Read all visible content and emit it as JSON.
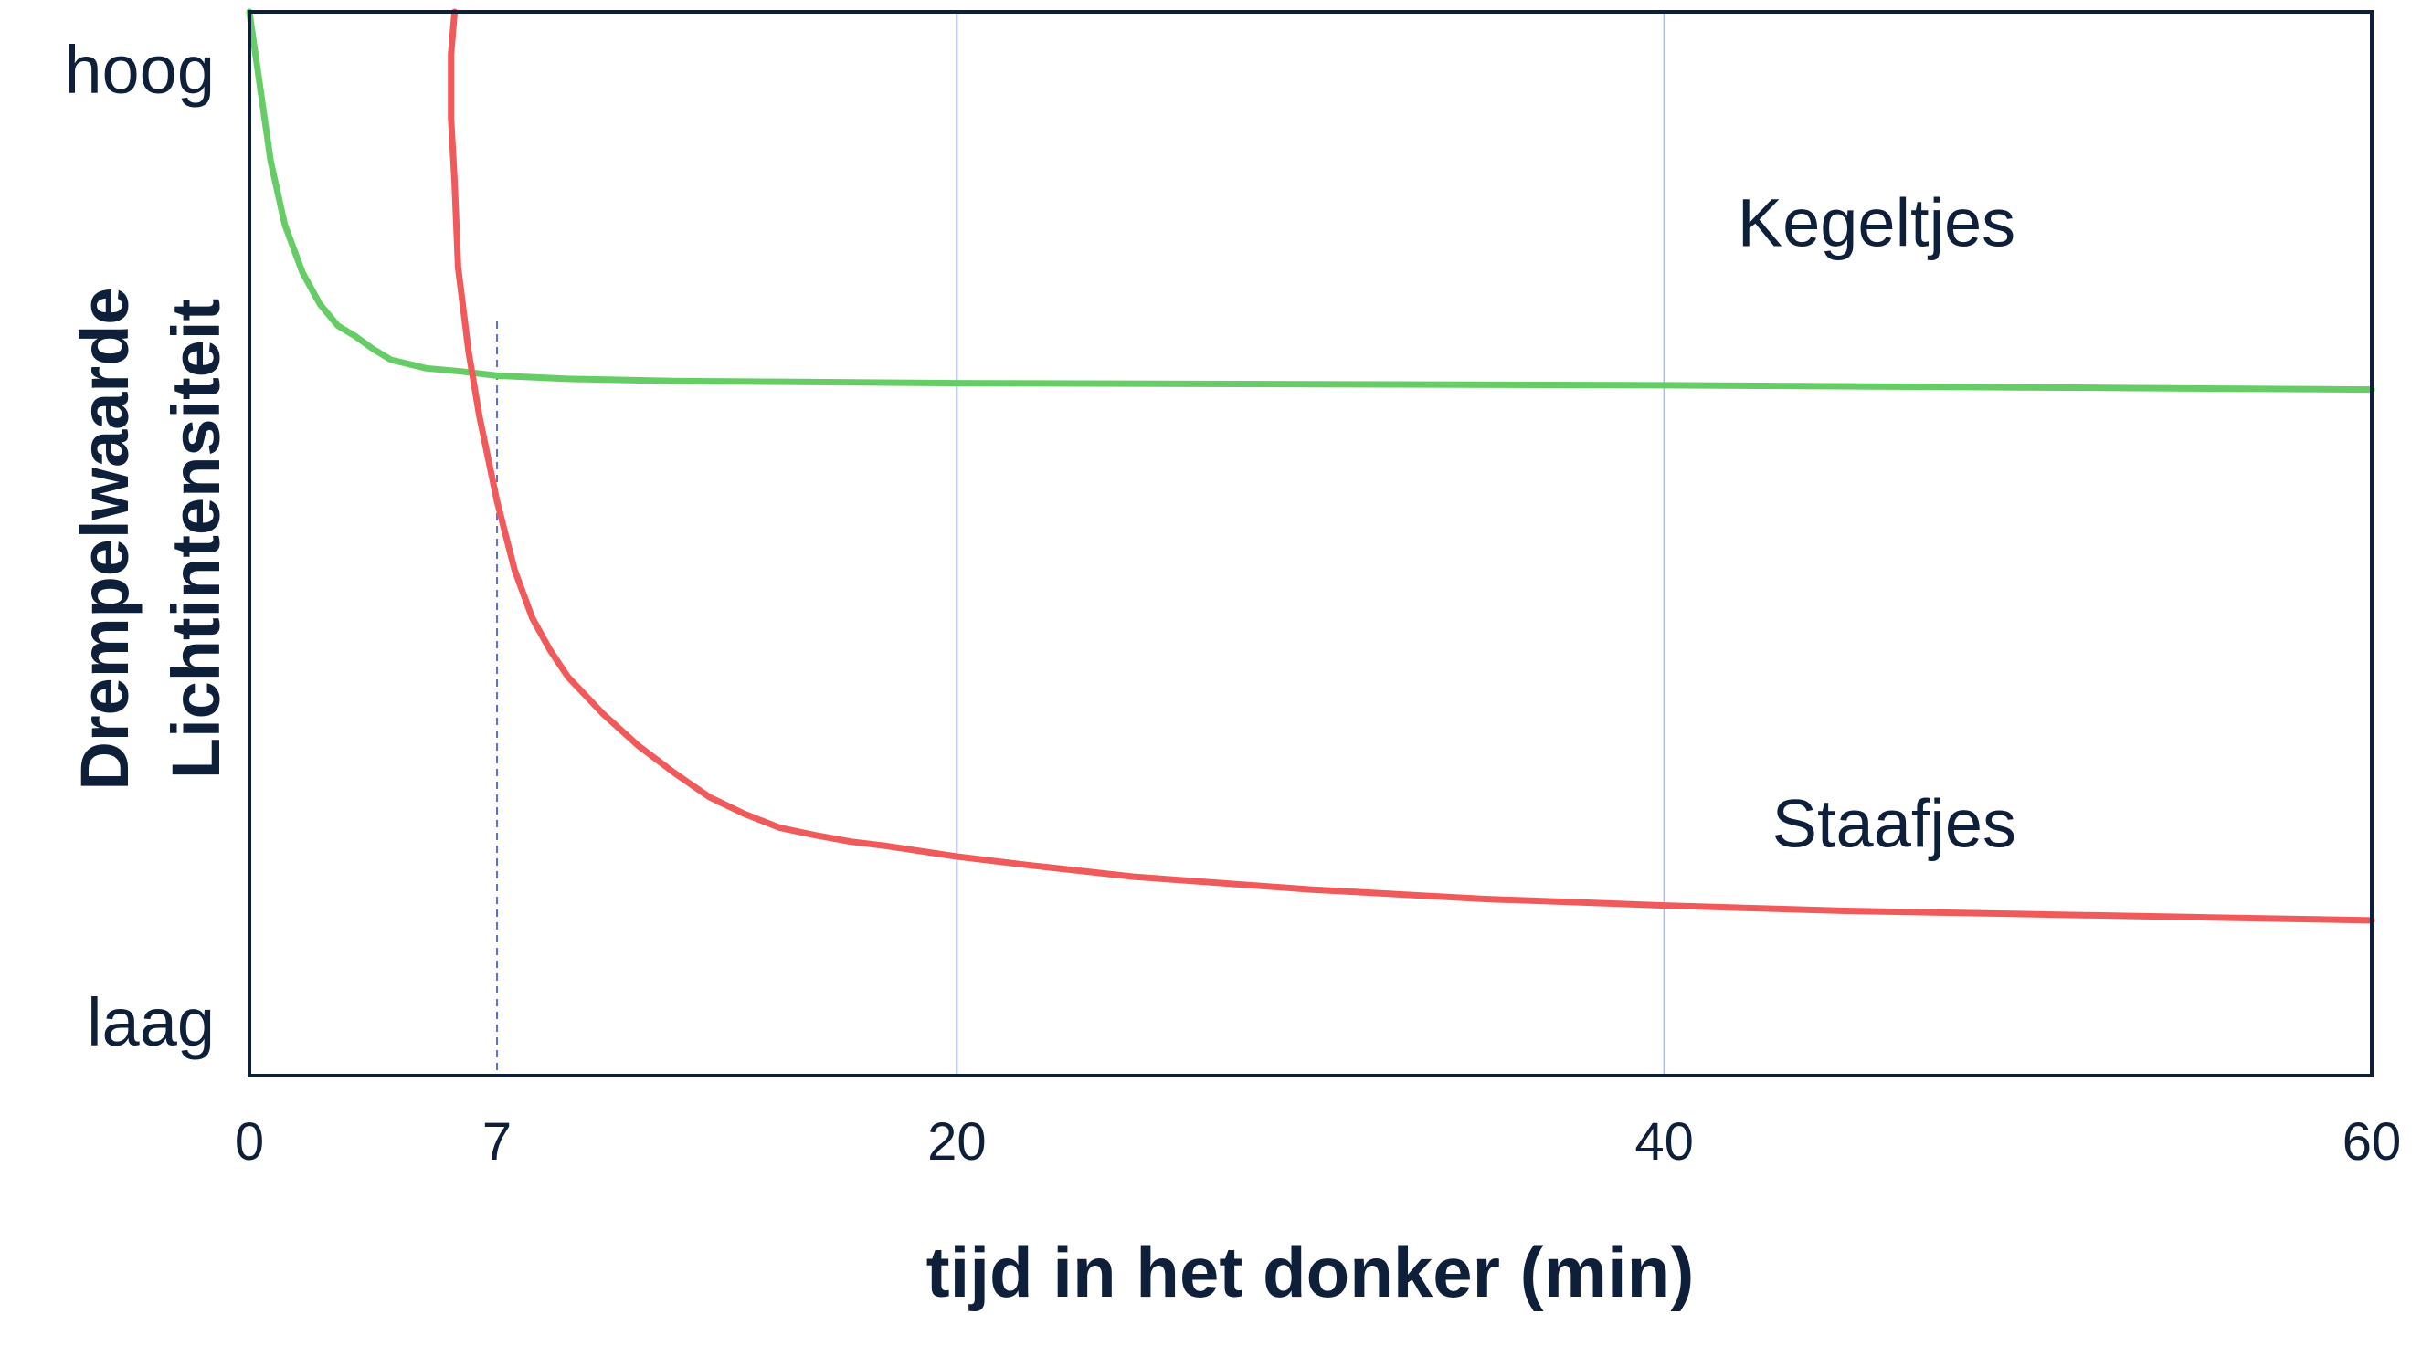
{
  "chart_data": {
    "type": "line",
    "title": "",
    "xlabel": "tijd in het donker (min)",
    "ylabel": [
      "Drempelwaarde",
      "Lichtintensiteit"
    ],
    "xlim": [
      0,
      60
    ],
    "ylim": [
      0,
      100
    ],
    "x_ticks": [
      0,
      7,
      20,
      40,
      60
    ],
    "y_tick_labels": {
      "high": "hoog",
      "low": "laag"
    },
    "grid_x": [
      20,
      40
    ],
    "reference_line_x": 7,
    "series": [
      {
        "name": "Kegeltjes",
        "color": "#66cc66",
        "points": [
          [
            0.0,
            100.0
          ],
          [
            0.3,
            93.0
          ],
          [
            0.6,
            86.0
          ],
          [
            1.0,
            80.0
          ],
          [
            1.5,
            75.5
          ],
          [
            2.0,
            72.5
          ],
          [
            2.5,
            70.5
          ],
          [
            3.0,
            69.5
          ],
          [
            3.5,
            68.3
          ],
          [
            4.0,
            67.3
          ],
          [
            5.0,
            66.5
          ],
          [
            6.0,
            66.2
          ],
          [
            7.0,
            65.8
          ],
          [
            9.0,
            65.5
          ],
          [
            12.0,
            65.3
          ],
          [
            20.0,
            65.1
          ],
          [
            30.0,
            65.0
          ],
          [
            40.0,
            64.9
          ],
          [
            50.0,
            64.7
          ],
          [
            60.0,
            64.5
          ]
        ]
      },
      {
        "name": "Staafjes",
        "color": "#f05a5a",
        "points": [
          [
            5.8,
            100.0
          ],
          [
            5.7,
            96.0
          ],
          [
            5.7,
            90.0
          ],
          [
            5.8,
            84.0
          ],
          [
            5.9,
            76.0
          ],
          [
            6.2,
            68.0
          ],
          [
            6.5,
            62.0
          ],
          [
            7.0,
            54.0
          ],
          [
            7.5,
            47.5
          ],
          [
            8.0,
            43.0
          ],
          [
            8.5,
            40.0
          ],
          [
            9.0,
            37.5
          ],
          [
            10.0,
            34.0
          ],
          [
            11.0,
            31.0
          ],
          [
            12.0,
            28.5
          ],
          [
            13.0,
            26.2
          ],
          [
            14.0,
            24.6
          ],
          [
            15.0,
            23.3
          ],
          [
            16.0,
            22.6
          ],
          [
            17.0,
            22.0
          ],
          [
            18.0,
            21.6
          ],
          [
            20.0,
            20.6
          ],
          [
            22.0,
            19.8
          ],
          [
            25.0,
            18.7
          ],
          [
            30.0,
            17.5
          ],
          [
            35.0,
            16.6
          ],
          [
            40.0,
            16.0
          ],
          [
            45.0,
            15.5
          ],
          [
            50.0,
            15.2
          ],
          [
            55.0,
            14.9
          ],
          [
            60.0,
            14.6
          ]
        ]
      }
    ],
    "annotations": [
      {
        "text": "Kegeltjes",
        "x": 46,
        "y": 78
      },
      {
        "text": "Staafjes",
        "x": 46.5,
        "y": 21.5
      }
    ],
    "colors": {
      "axis": "#0e1f3a",
      "grid": "#a9b9e6",
      "reference_line": "#6070d8",
      "text": "#0e1f3a"
    }
  }
}
